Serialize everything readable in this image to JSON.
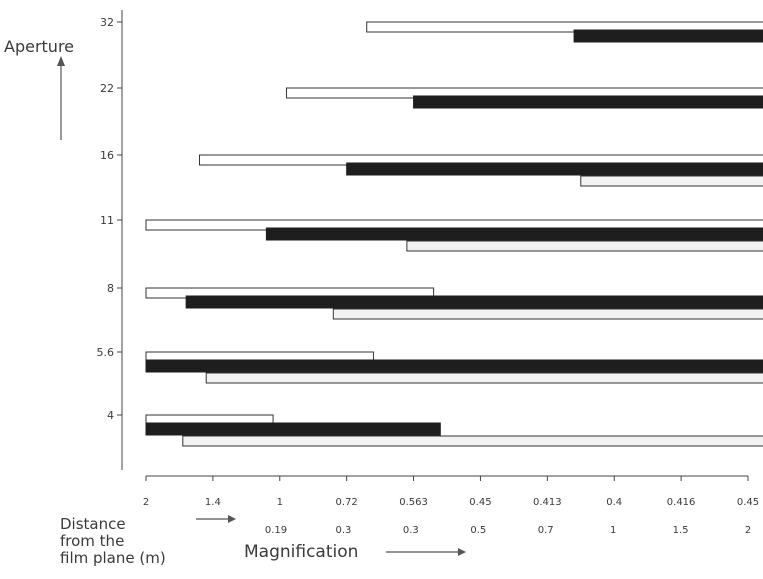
{
  "chart_data": {
    "type": "bar",
    "title": "",
    "ylabel": "Aperture",
    "xlabel_distance": "Distance from the film plane (m)",
    "xlabel_distance_lines": [
      "Distance",
      "from the",
      "film plane (m)"
    ],
    "xlabel_magnification": "Magnification",
    "distance_ticks": [
      "2",
      "1.4",
      "1",
      "0.72",
      "0.563",
      "0.45",
      "0.413",
      "0.4",
      "0.416",
      "0.45"
    ],
    "magnification_ticks": [
      "0.19",
      "0.3",
      "0.3",
      "0.5",
      "0.7",
      "1",
      "1.5",
      "2"
    ],
    "aperture_ticks": [
      "32",
      "22",
      "16",
      "11",
      "8",
      "5.6",
      "4"
    ],
    "bar_styles": {
      "open": {
        "fill": "#ffffff",
        "stroke": "#333333"
      },
      "solid": {
        "fill": "#1e1e1e",
        "stroke": "#1e1e1e"
      },
      "stippled": {
        "fill": "#f2f2f2",
        "stroke": "#333333"
      }
    },
    "bars": [
      {
        "aperture": "32",
        "style": "open",
        "start": 3.3,
        "end": 10
      },
      {
        "aperture": "32",
        "style": "solid",
        "start": 6.4,
        "end": 10
      },
      {
        "aperture": "22",
        "style": "open",
        "start": 2.1,
        "end": 10
      },
      {
        "aperture": "22",
        "style": "solid",
        "start": 4.0,
        "end": 10
      },
      {
        "aperture": "16",
        "style": "open",
        "start": 0.8,
        "end": 10
      },
      {
        "aperture": "16",
        "style": "solid",
        "start": 3.0,
        "end": 10
      },
      {
        "aperture": "16",
        "style": "stippled",
        "start": 6.5,
        "end": 10
      },
      {
        "aperture": "11",
        "style": "open",
        "start": 0,
        "end": 10
      },
      {
        "aperture": "11",
        "style": "solid",
        "start": 1.8,
        "end": 10
      },
      {
        "aperture": "11",
        "style": "stippled",
        "start": 3.9,
        "end": 10
      },
      {
        "aperture": "8",
        "style": "open",
        "start": 0,
        "end": 4.3
      },
      {
        "aperture": "8",
        "style": "solid",
        "start": 0.6,
        "end": 10
      },
      {
        "aperture": "8",
        "style": "stippled",
        "start": 2.8,
        "end": 10
      },
      {
        "aperture": "5.6",
        "style": "open",
        "start": 0,
        "end": 3.4
      },
      {
        "aperture": "5.6",
        "style": "solid",
        "start": 0,
        "end": 10
      },
      {
        "aperture": "5.6",
        "style": "stippled",
        "start": 0.9,
        "end": 10
      },
      {
        "aperture": "4",
        "style": "open",
        "start": 0,
        "end": 1.9
      },
      {
        "aperture": "4",
        "style": "solid",
        "start": 0,
        "end": 4.4
      },
      {
        "aperture": "4",
        "style": "stippled",
        "start": 0.55,
        "end": 10
      }
    ]
  }
}
